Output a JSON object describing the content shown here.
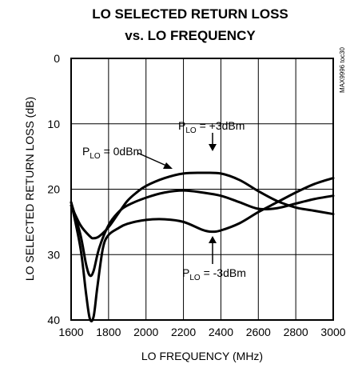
{
  "chart_data": {
    "type": "line",
    "title_line1": "LO SELECTED RETURN LOSS",
    "title_line2": "vs. LO FREQUENCY",
    "xlabel": "LO FREQUENCY (MHz)",
    "ylabel": "LO SELECTED RETURN LOSS (dB)",
    "xlim": [
      1600,
      3000
    ],
    "ylim": [
      0,
      40
    ],
    "y_inverted": true,
    "grid": true,
    "x_ticks": [
      "1600",
      "1800",
      "2000",
      "2200",
      "2400",
      "2600",
      "2800",
      "3000"
    ],
    "y_ticks": [
      "0",
      "10",
      "20",
      "30",
      "40"
    ],
    "series": [
      {
        "name": "PLO = +3dBm",
        "x": [
          1600,
          1650,
          1700,
          1720,
          1750,
          1800,
          1850,
          1900,
          1950,
          2000,
          2100,
          2200,
          2300,
          2400,
          2500,
          2600,
          2700,
          2800,
          2900,
          3000
        ],
        "y": [
          22.5,
          25.5,
          27.2,
          27.5,
          27.2,
          25.8,
          23.8,
          21.8,
          20.5,
          19.5,
          18.3,
          17.6,
          17.5,
          17.6,
          18.6,
          20.3,
          21.8,
          22.8,
          23.3,
          23.8
        ]
      },
      {
        "name": "PLO = 0dBm",
        "x": [
          1600,
          1650,
          1680,
          1700,
          1720,
          1750,
          1800,
          1850,
          1900,
          2000,
          2100,
          2200,
          2300,
          2400,
          2500,
          2600,
          2700,
          2800,
          2900,
          3000
        ],
        "y": [
          22,
          27,
          31.5,
          33.2,
          32.5,
          29,
          25.5,
          23.6,
          22.5,
          21.3,
          20.5,
          20.2,
          20.5,
          21.0,
          22.0,
          23.0,
          22.9,
          22.2,
          21.5,
          21.0
        ]
      },
      {
        "name": "PLO = -3dBm",
        "x": [
          1600,
          1650,
          1680,
          1700,
          1720,
          1740,
          1770,
          1800,
          1850,
          1900,
          2000,
          2100,
          2200,
          2300,
          2350,
          2400,
          2500,
          2600,
          2700,
          2800,
          2900,
          3000
        ],
        "y": [
          22,
          29,
          36,
          39.8,
          39.5,
          35,
          29,
          27,
          26,
          25.3,
          24.7,
          24.6,
          25.0,
          26.2,
          26.5,
          26.3,
          25.2,
          23.5,
          22.0,
          20.5,
          19.2,
          18.3
        ]
      }
    ],
    "annotations": [
      {
        "base": "P",
        "sub": "LO",
        "rest": " = +3dBm"
      },
      {
        "base": "P",
        "sub": "LO",
        "rest": " = 0dBm"
      },
      {
        "base": "P",
        "sub": "LO",
        "rest": " = -3dBm"
      }
    ],
    "figure_code": "MAX9996 toc30"
  }
}
